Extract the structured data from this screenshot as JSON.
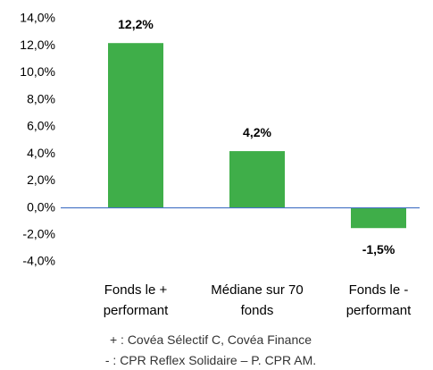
{
  "chart_data": {
    "type": "bar",
    "categories": [
      "Fonds le + performant",
      "Médiane sur 70 fonds",
      "Fonds le - performant"
    ],
    "values": [
      12.2,
      4.2,
      -1.5
    ],
    "value_labels": [
      "12,2%",
      "4,2%",
      "-1,5%"
    ],
    "color": "#3fae49",
    "zero_line_color": "#4472c4",
    "ylim": [
      -4,
      14
    ],
    "yticks": [
      {
        "value": -4,
        "label": "-4,0%"
      },
      {
        "value": -2,
        "label": "-2,0%"
      },
      {
        "value": 0,
        "label": "0,0%"
      },
      {
        "value": 2,
        "label": "2,0%"
      },
      {
        "value": 4,
        "label": "4,0%"
      },
      {
        "value": 6,
        "label": "6,0%"
      },
      {
        "value": 8,
        "label": "8,0%"
      },
      {
        "value": 10,
        "label": "10,0%"
      },
      {
        "value": 12,
        "label": "12,0%"
      },
      {
        "value": 14,
        "label": "14,0%"
      }
    ],
    "grid": false,
    "notes": [
      "+ : Covéa Sélectif C, Covéa Finance",
      "- : CPR Reflex Solidaire – P. CPR AM."
    ]
  }
}
